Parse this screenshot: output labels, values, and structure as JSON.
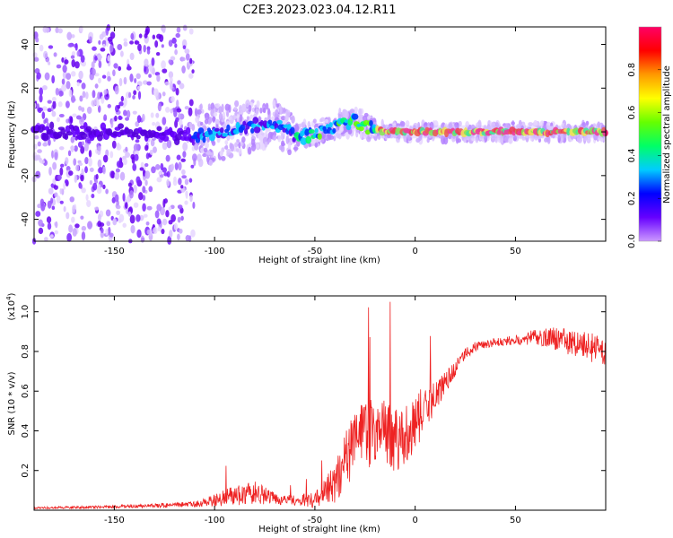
{
  "title": "C2E3.2023.023.04.12.R11",
  "chart_data": [
    {
      "type": "heatmap",
      "xlabel": "Height of straight line (km)",
      "ylabel": "Frequency (Hz)",
      "xlim": [
        -190,
        95
      ],
      "ylim": [
        -50,
        48
      ],
      "xticks": [
        "-150",
        "-100",
        "-50",
        "0",
        "50"
      ],
      "xtick_values": [
        -150,
        -100,
        -50,
        0,
        50
      ],
      "yticks": [
        "-40",
        "-20",
        "0",
        "20",
        "40"
      ],
      "ytick_values": [
        -40,
        -20,
        0,
        20,
        40
      ],
      "colorbar": {
        "label": "Normalized spectral amplitude",
        "range": [
          0,
          1
        ],
        "ticks": [
          "0.0",
          "0.2",
          "0.4",
          "0.6",
          "0.8"
        ],
        "tick_values": [
          0,
          0.2,
          0.4,
          0.6,
          0.8
        ],
        "colors": [
          "#cc99ff",
          "#6600ff",
          "#0000ff",
          "#00ccff",
          "#00ff66",
          "#66ff00",
          "#ffff00",
          "#ff9900",
          "#ff0000",
          "#ff0066"
        ]
      },
      "ridge": {
        "x": [
          -190,
          -150,
          -110,
          -100,
          -90,
          -80,
          -70,
          -60,
          -50,
          -40,
          -30,
          -20,
          -10,
          0,
          20,
          50,
          95
        ],
        "freq": [
          0,
          0,
          -2,
          -1,
          1,
          3,
          4,
          -2,
          -1,
          3,
          5,
          1,
          0,
          0,
          0,
          0,
          0
        ]
      }
    },
    {
      "type": "line",
      "xlabel": "Height of straight line (km)",
      "ylabel": "SNR (10 * v/v)",
      "yscale_label": "(x10",
      "yscale_exp": "4",
      "yscale_close": ")",
      "xlim": [
        -190,
        95
      ],
      "ylim": [
        0,
        1.08
      ],
      "xticks": [
        "-150",
        "-100",
        "-50",
        "0",
        "50"
      ],
      "xtick_values": [
        -150,
        -100,
        -50,
        0,
        50
      ],
      "yticks": [
        "0.2",
        "0.4",
        "0.6",
        "0.8",
        "1.0"
      ],
      "ytick_values": [
        0.2,
        0.4,
        0.6,
        0.8,
        1.0
      ],
      "series": [
        {
          "color": "#ee2222",
          "envelope_x": [
            -190,
            -150,
            -130,
            -110,
            -100,
            -90,
            -80,
            -70,
            -60,
            -50,
            -40,
            -35,
            -30,
            -20,
            -10,
            0,
            10,
            20,
            25,
            30,
            40,
            50,
            60,
            70,
            80,
            95
          ],
          "envelope_base": [
            0.01,
            0.015,
            0.02,
            0.025,
            0.04,
            0.06,
            0.07,
            0.05,
            0.04,
            0.04,
            0.1,
            0.2,
            0.3,
            0.35,
            0.3,
            0.4,
            0.55,
            0.7,
            0.78,
            0.82,
            0.84,
            0.85,
            0.86,
            0.85,
            0.82,
            0.78
          ],
          "envelope_amp": [
            0.01,
            0.015,
            0.02,
            0.03,
            0.06,
            0.1,
            0.12,
            0.06,
            0.05,
            0.08,
            0.2,
            0.3,
            0.35,
            0.35,
            0.35,
            0.3,
            0.15,
            0.08,
            0.06,
            0.05,
            0.04,
            0.05,
            0.08,
            0.12,
            0.14,
            0.16
          ]
        }
      ]
    }
  ]
}
